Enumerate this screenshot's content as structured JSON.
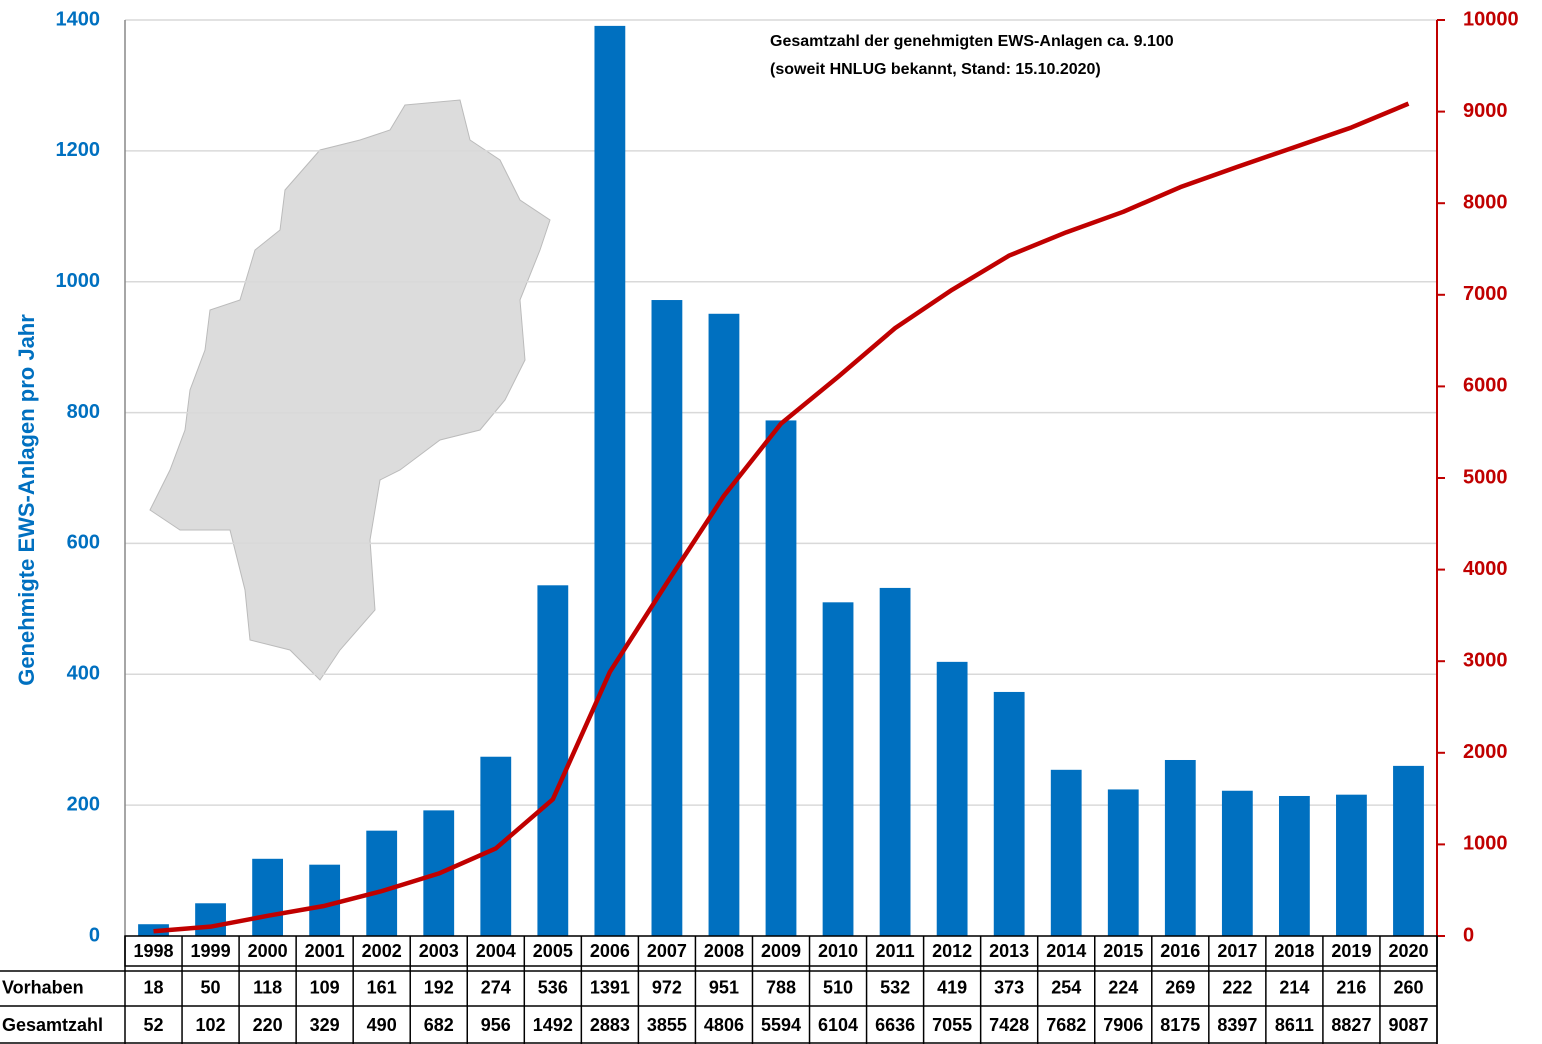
{
  "chart_data": {
    "type": "bar_line",
    "annotations": [
      "Gesamtzahl der genehmigten EWS-Anlagen ca. 9.100",
      "(soweit HNLUG bekannt, Stand: 15.10.2020)"
    ],
    "ylabel": "Genehmigte EWS-Anlagen pro Jahr",
    "categories": [
      "1998",
      "1999",
      "2000",
      "2001",
      "2002",
      "2003",
      "2004",
      "2005",
      "2006",
      "2007",
      "2008",
      "2009",
      "2010",
      "2011",
      "2012",
      "2013",
      "2014",
      "2015",
      "2016",
      "2017",
      "2018",
      "2019",
      "2020"
    ],
    "series": [
      {
        "name": "Vorhaben",
        "color": "#0070c0",
        "type": "bar",
        "values": [
          18,
          50,
          118,
          109,
          161,
          192,
          274,
          536,
          1391,
          972,
          951,
          788,
          510,
          532,
          419,
          373,
          254,
          224,
          269,
          222,
          214,
          216,
          260
        ]
      },
      {
        "name": "Gesamtzahl",
        "color": "#c00000",
        "type": "line",
        "axis": "y2",
        "values": [
          52,
          102,
          220,
          329,
          490,
          682,
          956,
          1492,
          2883,
          3855,
          4806,
          5594,
          6104,
          6636,
          7055,
          7428,
          7682,
          7906,
          8175,
          8397,
          8611,
          8827,
          9087
        ]
      }
    ],
    "ylim": [
      0,
      1400
    ],
    "yticks": [
      0,
      200,
      400,
      600,
      800,
      1000,
      1200,
      1400
    ],
    "y2lim": [
      0,
      10000
    ],
    "y2ticks": [
      0,
      1000,
      2000,
      3000,
      4000,
      5000,
      6000,
      7000,
      8000,
      9000,
      10000
    ],
    "grid": true
  }
}
